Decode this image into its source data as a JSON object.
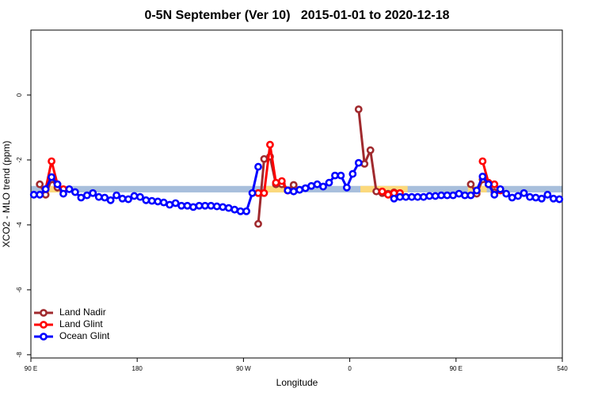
{
  "chart_data": {
    "type": "line",
    "title": "0-5N September (Ver 10)   2015-01-01 to 2020-12-18",
    "x_label": "Longitude",
    "y_label": "XCO2 - MLO trend (ppm)",
    "xlim": [
      90,
      540
    ],
    "ylim": [
      -8.1,
      2
    ],
    "xticks": [
      {
        "value": 90,
        "label": "90 E"
      },
      180,
      {
        "value": 270,
        "label": "90 W"
      },
      {
        "value": 360,
        "label": "0"
      },
      {
        "value": 450,
        "label": "90 E"
      },
      540
    ],
    "yticks": [
      0,
      -2,
      -4,
      -6,
      -8
    ],
    "band": {
      "ylim": [
        -3.0,
        -2.8
      ],
      "color": "#a8bfdc"
    },
    "land_segments": {
      "color": "#fcd97c",
      "ranges": [
        [
          101,
          114
        ],
        [
          289,
          305
        ],
        [
          369,
          409
        ],
        [
          460,
          476
        ]
      ]
    },
    "legend": "bottom-left",
    "series": [
      {
        "name": "Land Nadir",
        "color": "#a02a2e",
        "x": [
          97.5,
          102.5,
          107.5,
          112.5,
          117.5,
          null,
          282.5,
          287.5,
          292.5,
          297.5,
          302.5,
          307.5,
          312.5,
          null,
          367.5,
          372.5,
          377.5,
          382.5,
          387.5,
          392.5,
          397.5,
          null,
          462.5,
          467.5,
          472.5,
          477.5,
          482.5
        ],
        "values": [
          -2.75,
          -3.07,
          -2.6,
          -2.85,
          -2.95,
          null,
          -3.97,
          -1.97,
          -1.9,
          -2.75,
          -2.75,
          -2.94,
          -2.77,
          null,
          -0.44,
          -2.12,
          -1.7,
          -2.97,
          -3.02,
          -3.04,
          -3.0,
          null,
          -2.75,
          -3.04,
          -2.6,
          -2.75,
          -3.0
        ]
      },
      {
        "name": "Land Glint",
        "color": "#ff0000",
        "x": [
          102.5,
          107.5,
          112.5,
          117.5,
          null,
          282.5,
          287.5,
          292.5,
          297.5,
          302.5,
          307.5,
          null,
          387.5,
          392.5,
          397.5,
          402.5,
          null,
          472.5,
          477.5,
          482.5,
          487.5
        ],
        "values": [
          -2.9,
          -2.04,
          -2.75,
          -2.9,
          null,
          -3.02,
          -3.02,
          -1.53,
          -2.7,
          -2.65,
          -2.94,
          null,
          -2.97,
          -3.07,
          -3.02,
          -3.02,
          null,
          -2.04,
          -2.7,
          -2.75,
          -2.94
        ]
      },
      {
        "name": "Ocean Glint",
        "color": "#0000ff",
        "x": [
          92.5,
          97.5,
          102.5,
          107.5,
          112.5,
          117.5,
          122.5,
          127.5,
          132.5,
          137.5,
          142.5,
          147.5,
          152.5,
          157.5,
          162.5,
          167.5,
          172.5,
          177.5,
          182.5,
          187.5,
          192.5,
          197.5,
          202.5,
          207.5,
          212.5,
          217.5,
          222.5,
          227.5,
          232.5,
          237.5,
          242.5,
          247.5,
          252.5,
          257.5,
          262.5,
          267.5,
          272.5,
          277.5,
          282.5,
          null,
          307.5,
          312.5,
          317.5,
          322.5,
          327.5,
          332.5,
          337.5,
          342.5,
          347.5,
          352.5,
          357.5,
          362.5,
          367.5,
          null,
          397.5,
          402.5,
          407.5,
          412.5,
          417.5,
          422.5,
          427.5,
          432.5,
          437.5,
          442.5,
          447.5,
          452.5,
          457.5,
          462.5,
          467.5,
          472.5,
          477.5,
          482.5,
          487.5,
          492.5,
          497.5,
          502.5,
          507.5,
          512.5,
          517.5,
          522.5,
          527.5,
          532.5,
          537.5
        ],
        "values": [
          -3.07,
          -3.07,
          -2.9,
          -2.53,
          -2.75,
          -3.04,
          -2.9,
          -2.99,
          -3.16,
          -3.09,
          -3.02,
          -3.14,
          -3.16,
          -3.24,
          -3.09,
          -3.19,
          -3.21,
          -3.11,
          -3.14,
          -3.24,
          -3.26,
          -3.28,
          -3.31,
          -3.38,
          -3.33,
          -3.41,
          -3.41,
          -3.45,
          -3.41,
          -3.41,
          -3.41,
          -3.43,
          -3.45,
          -3.48,
          -3.53,
          -3.58,
          -3.58,
          -3.02,
          -2.21,
          null,
          -2.94,
          -2.97,
          -2.92,
          -2.87,
          -2.8,
          -2.75,
          -2.82,
          -2.7,
          -2.48,
          -2.48,
          -2.85,
          -2.43,
          -2.09,
          null,
          -3.19,
          -3.14,
          -3.14,
          -3.14,
          -3.14,
          -3.14,
          -3.11,
          -3.11,
          -3.09,
          -3.09,
          -3.09,
          -3.04,
          -3.09,
          -3.09,
          -2.94,
          -2.51,
          -2.75,
          -3.07,
          -2.9,
          -3.04,
          -3.16,
          -3.11,
          -3.02,
          -3.14,
          -3.16,
          -3.19,
          -3.07,
          -3.19,
          -3.21
        ]
      }
    ]
  }
}
